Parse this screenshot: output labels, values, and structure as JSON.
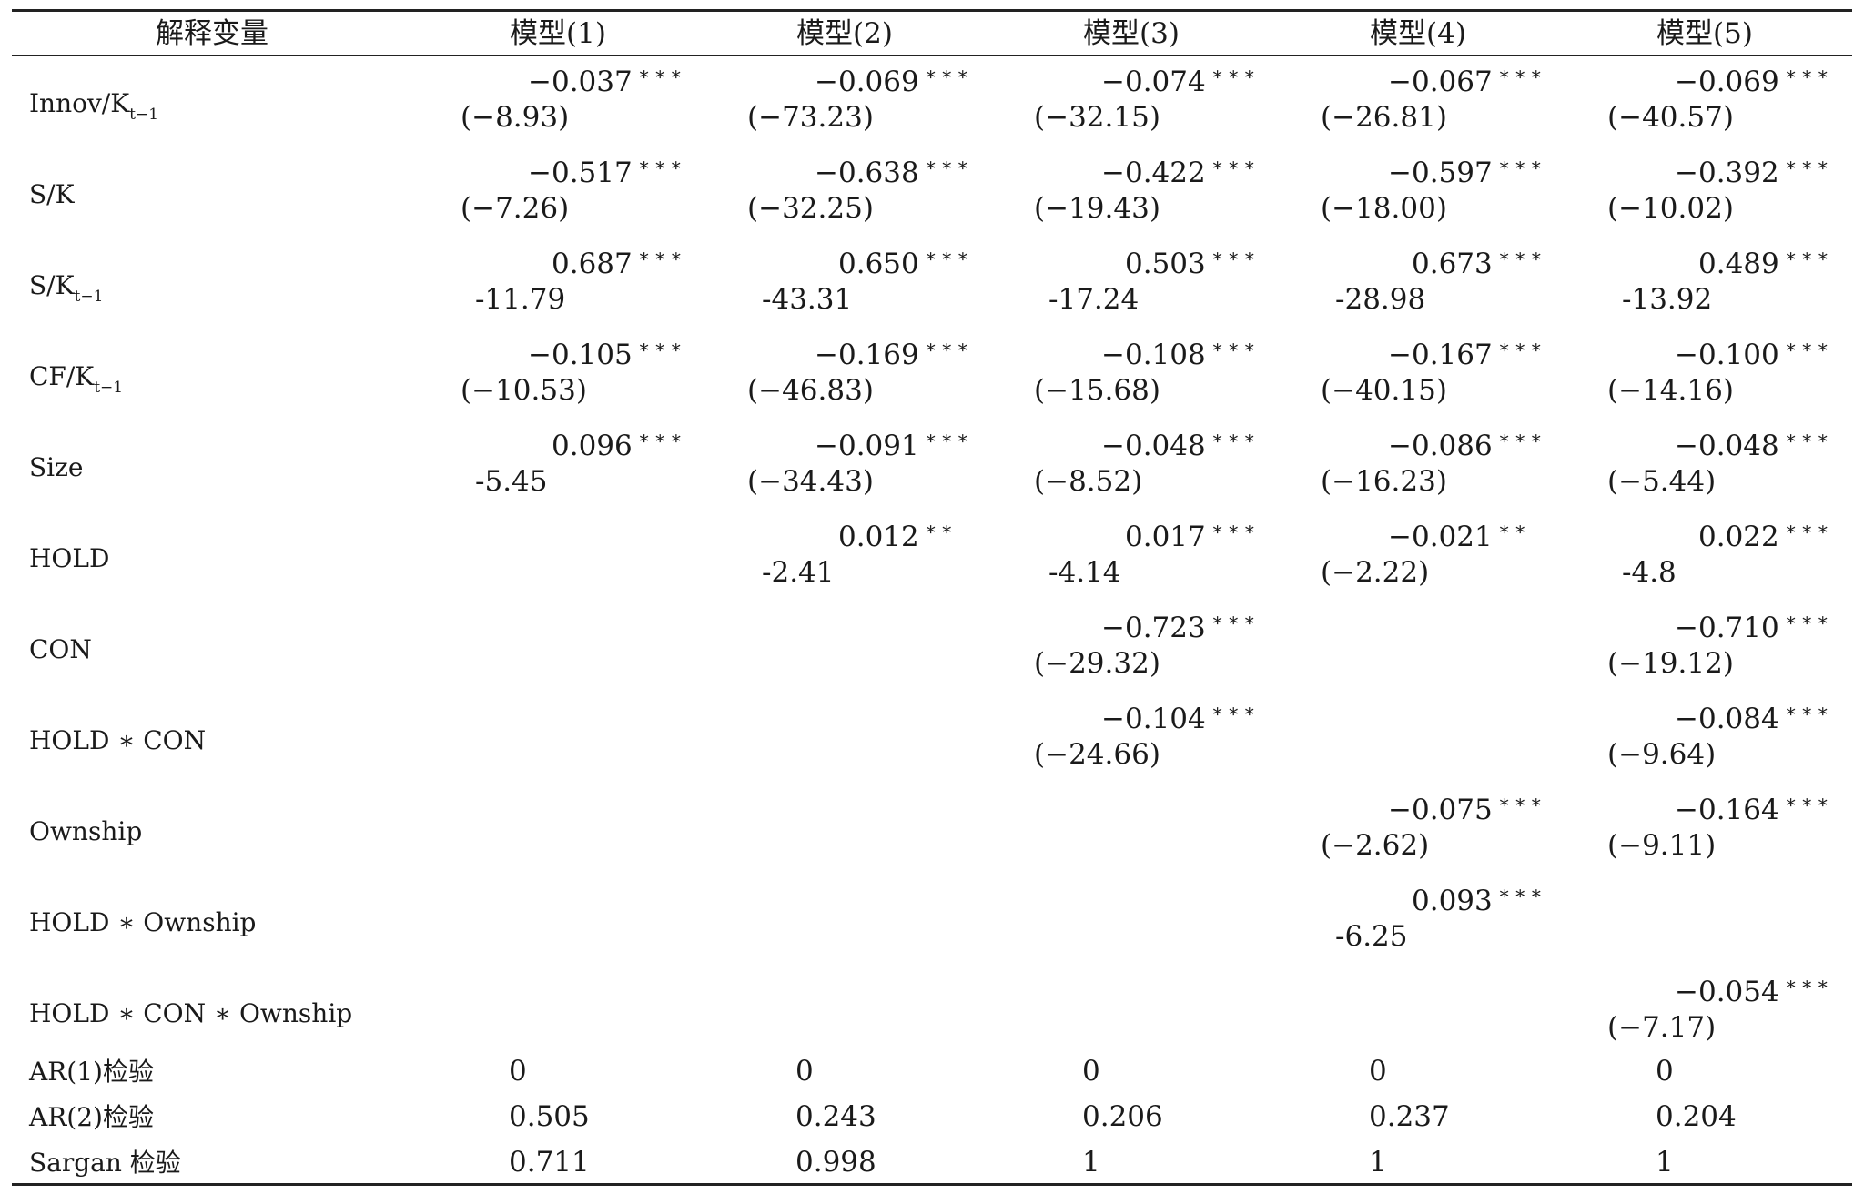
{
  "header": {
    "variable_label": "解释变量",
    "models": [
      "模型(1)",
      "模型(2)",
      "模型(3)",
      "模型(4)",
      "模型(5)"
    ]
  },
  "rows": [
    {
      "label_main": "Innov/K",
      "label_sub": "t−1",
      "cells": [
        {
          "coef": "−0.037",
          "sig": "***",
          "stat": "(−8.93)"
        },
        {
          "coef": "−0.069",
          "sig": "***",
          "stat": "(−73.23)"
        },
        {
          "coef": "−0.074",
          "sig": "***",
          "stat": "(−32.15)"
        },
        {
          "coef": "−0.067",
          "sig": "***",
          "stat": "(−26.81)"
        },
        {
          "coef": "−0.069",
          "sig": "***",
          "stat": "(−40.57)"
        }
      ]
    },
    {
      "label_main": "S/K",
      "label_sub": "",
      "cells": [
        {
          "coef": "−0.517",
          "sig": "***",
          "stat": "(−7.26)"
        },
        {
          "coef": "−0.638",
          "sig": "***",
          "stat": "(−32.25)"
        },
        {
          "coef": "−0.422",
          "sig": "***",
          "stat": "(−19.43)"
        },
        {
          "coef": "−0.597",
          "sig": "***",
          "stat": "(−18.00)"
        },
        {
          "coef": "−0.392",
          "sig": "***",
          "stat": "(−10.02)"
        }
      ]
    },
    {
      "label_main": "S/K",
      "label_sub": "t−1",
      "cells": [
        {
          "coef": "0.687",
          "sig": "***",
          "stat": "-11.79"
        },
        {
          "coef": "0.650",
          "sig": "***",
          "stat": "-43.31"
        },
        {
          "coef": "0.503",
          "sig": "***",
          "stat": "-17.24"
        },
        {
          "coef": "0.673",
          "sig": "***",
          "stat": "-28.98"
        },
        {
          "coef": "0.489",
          "sig": "***",
          "stat": "-13.92"
        }
      ]
    },
    {
      "label_main": "CF/K",
      "label_sub": "t−1",
      "cells": [
        {
          "coef": "−0.105",
          "sig": "***",
          "stat": "(−10.53)"
        },
        {
          "coef": "−0.169",
          "sig": "***",
          "stat": "(−46.83)"
        },
        {
          "coef": "−0.108",
          "sig": "***",
          "stat": "(−15.68)"
        },
        {
          "coef": "−0.167",
          "sig": "***",
          "stat": "(−40.15)"
        },
        {
          "coef": "−0.100",
          "sig": "***",
          "stat": "(−14.16)"
        }
      ]
    },
    {
      "label_main": "Size",
      "label_sub": "",
      "cells": [
        {
          "coef": "0.096",
          "sig": "***",
          "stat": "-5.45"
        },
        {
          "coef": "−0.091",
          "sig": "***",
          "stat": "(−34.43)"
        },
        {
          "coef": "−0.048",
          "sig": "***",
          "stat": "(−8.52)"
        },
        {
          "coef": "−0.086",
          "sig": "***",
          "stat": "(−16.23)"
        },
        {
          "coef": "−0.048",
          "sig": "***",
          "stat": "(−5.44)"
        }
      ]
    },
    {
      "label_main": "HOLD",
      "label_sub": "",
      "cells": [
        {
          "coef": "",
          "sig": "",
          "stat": ""
        },
        {
          "coef": "0.012",
          "sig": "**",
          "stat": "-2.41"
        },
        {
          "coef": "0.017",
          "sig": "***",
          "stat": "-4.14"
        },
        {
          "coef": "−0.021",
          "sig": "**",
          "stat": "(−2.22)"
        },
        {
          "coef": "0.022",
          "sig": "***",
          "stat": "-4.8"
        }
      ]
    },
    {
      "label_main": "CON",
      "label_sub": "",
      "cells": [
        {
          "coef": "",
          "sig": "",
          "stat": ""
        },
        {
          "coef": "",
          "sig": "",
          "stat": ""
        },
        {
          "coef": "−0.723",
          "sig": "***",
          "stat": "(−29.32)"
        },
        {
          "coef": "",
          "sig": "",
          "stat": ""
        },
        {
          "coef": "−0.710",
          "sig": "***",
          "stat": "(−19.12)"
        }
      ]
    },
    {
      "label_main": "HOLD ∗ CON",
      "label_sub": "",
      "cells": [
        {
          "coef": "",
          "sig": "",
          "stat": ""
        },
        {
          "coef": "",
          "sig": "",
          "stat": ""
        },
        {
          "coef": "−0.104",
          "sig": "***",
          "stat": "(−24.66)"
        },
        {
          "coef": "",
          "sig": "",
          "stat": ""
        },
        {
          "coef": "−0.084",
          "sig": "***",
          "stat": "(−9.64)"
        }
      ]
    },
    {
      "label_main": "Ownship",
      "label_sub": "",
      "cells": [
        {
          "coef": "",
          "sig": "",
          "stat": ""
        },
        {
          "coef": "",
          "sig": "",
          "stat": ""
        },
        {
          "coef": "",
          "sig": "",
          "stat": ""
        },
        {
          "coef": "−0.075",
          "sig": "***",
          "stat": "(−2.62)"
        },
        {
          "coef": "−0.164",
          "sig": "***",
          "stat": "(−9.11)"
        }
      ]
    },
    {
      "label_main": "HOLD ∗ Ownship",
      "label_sub": "",
      "cells": [
        {
          "coef": "",
          "sig": "",
          "stat": ""
        },
        {
          "coef": "",
          "sig": "",
          "stat": ""
        },
        {
          "coef": "",
          "sig": "",
          "stat": ""
        },
        {
          "coef": "0.093",
          "sig": "***",
          "stat": "-6.25"
        },
        {
          "coef": "",
          "sig": "",
          "stat": ""
        }
      ]
    },
    {
      "label_main": "HOLD ∗ CON  ∗ Ownship",
      "label_sub": "",
      "cells": [
        {
          "coef": "",
          "sig": "",
          "stat": ""
        },
        {
          "coef": "",
          "sig": "",
          "stat": ""
        },
        {
          "coef": "",
          "sig": "",
          "stat": ""
        },
        {
          "coef": "",
          "sig": "",
          "stat": ""
        },
        {
          "coef": "−0.054",
          "sig": "***",
          "stat": "(−7.17)"
        }
      ]
    }
  ],
  "tests": [
    {
      "label": "AR(1)检验",
      "values": [
        "0",
        "0",
        "0",
        "0",
        "0"
      ]
    },
    {
      "label": "AR(2)检验",
      "values": [
        "0.505",
        "0.243",
        "0.206",
        "0.237",
        "0.204"
      ]
    },
    {
      "label": "Sargan 检验",
      "values": [
        "0.711",
        "0.998",
        "1",
        "1",
        "1"
      ]
    }
  ]
}
